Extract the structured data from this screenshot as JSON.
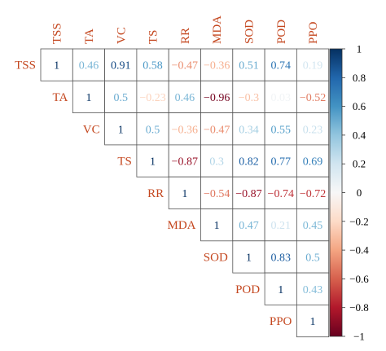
{
  "chart_data": {
    "type": "heatmap",
    "variables": [
      "TSS",
      "TA",
      "VC",
      "TS",
      "RR",
      "MDA",
      "SOD",
      "POD",
      "PPO"
    ],
    "matrix": [
      [
        1,
        0.46,
        0.91,
        0.58,
        -0.47,
        -0.36,
        0.51,
        0.74,
        0.19
      ],
      [
        null,
        1,
        0.5,
        -0.23,
        0.46,
        -0.96,
        -0.3,
        0.03,
        -0.52
      ],
      [
        null,
        null,
        1,
        0.5,
        -0.36,
        -0.47,
        0.34,
        0.55,
        0.23
      ],
      [
        null,
        null,
        null,
        1,
        -0.87,
        0.3,
        0.82,
        0.77,
        0.69
      ],
      [
        null,
        null,
        null,
        null,
        1,
        -0.54,
        -0.87,
        -0.74,
        -0.72
      ],
      [
        null,
        null,
        null,
        null,
        null,
        1,
        0.47,
        0.21,
        0.45
      ],
      [
        null,
        null,
        null,
        null,
        null,
        null,
        1,
        0.83,
        0.5
      ],
      [
        null,
        null,
        null,
        null,
        null,
        null,
        null,
        1,
        0.43
      ],
      [
        null,
        null,
        null,
        null,
        null,
        null,
        null,
        null,
        1
      ]
    ],
    "color_scale": {
      "range": [
        -1,
        1
      ],
      "ticks": [
        1,
        0.8,
        0.6,
        0.4,
        0.2,
        0,
        -0.2,
        -0.4,
        -0.6,
        -0.8,
        -1
      ],
      "negative_color": "#67001f",
      "mid_color": "#f7f7f7",
      "positive_color": "#053061"
    },
    "label_color": "#c4471f",
    "triangle": "upper"
  }
}
